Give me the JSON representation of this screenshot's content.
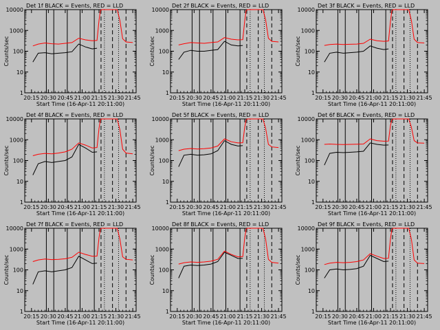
{
  "chart_data": {
    "type": "line",
    "xlabel_text": "Start Time (16-Apr-11 20:11:00)",
    "ylabel": "Counts/sec",
    "ylog": true,
    "ylim": [
      1,
      10000
    ],
    "xlim": [
      20.15,
      21.8
    ],
    "xtick_labels": [
      "20:15",
      "20:30",
      "20:45",
      "21:00",
      "21:15",
      "21:30",
      "21:45"
    ],
    "ytick_labels": [
      "1",
      "10",
      "100",
      "1000",
      "10000"
    ],
    "series_colors": {
      "events": "#000000",
      "lld": "#ff0000"
    },
    "solid_markers": [
      20.47,
      20.58,
      20.78,
      20.97,
      21.18
    ],
    "dashed_markers": [
      21.28,
      21.45,
      21.65
    ],
    "dotted_markers": [
      21.33,
      21.54
    ],
    "time_samples": [
      20.27,
      20.35,
      20.45,
      20.55,
      20.65,
      20.75,
      20.85,
      20.95,
      21.05,
      21.15,
      21.22,
      21.25,
      21.27,
      21.29,
      21.32,
      21.38,
      21.45,
      21.52,
      21.56,
      21.6,
      21.65,
      21.75
    ],
    "detectors": [
      {
        "title": "Det 1f BLACK = Events, RED = LLD",
        "events": [
          30,
          80,
          85,
          75,
          80,
          85,
          95,
          220,
          160,
          130,
          140,
          null,
          null,
          null,
          null,
          null,
          null,
          null,
          null,
          null,
          null,
          null
        ],
        "lld": [
          180,
          220,
          250,
          230,
          220,
          240,
          260,
          420,
          350,
          320,
          330,
          3000,
          9000,
          10000,
          10000,
          10000,
          10000,
          10000,
          3000,
          400,
          280,
          260
        ]
      },
      {
        "title": "Det 2f BLACK = Events, RED = LLD",
        "events": [
          40,
          90,
          110,
          100,
          100,
          110,
          120,
          300,
          200,
          180,
          190,
          null,
          null,
          null,
          null,
          null,
          null,
          null,
          null,
          null,
          null,
          null
        ],
        "lld": [
          200,
          230,
          260,
          250,
          240,
          260,
          280,
          450,
          380,
          350,
          360,
          3000,
          9000,
          10000,
          10000,
          10000,
          10000,
          10000,
          3200,
          420,
          300,
          280
        ]
      },
      {
        "title": "Det 3f BLACK = Events, RED = LLD",
        "events": [
          30,
          80,
          90,
          80,
          85,
          90,
          100,
          180,
          140,
          120,
          130,
          null,
          null,
          null,
          null,
          null,
          null,
          null,
          null,
          null,
          null,
          null
        ],
        "lld": [
          190,
          210,
          220,
          210,
          215,
          220,
          240,
          380,
          320,
          300,
          310,
          2800,
          9000,
          10000,
          10000,
          10000,
          10000,
          10000,
          3000,
          380,
          260,
          250
        ]
      },
      {
        "title": "Det 4f BLACK = Events, RED = LLD",
        "events": [
          20,
          70,
          90,
          80,
          90,
          100,
          150,
          600,
          400,
          250,
          260,
          null,
          null,
          null,
          null,
          null,
          null,
          null,
          null,
          null,
          null,
          null
        ],
        "lld": [
          170,
          200,
          220,
          210,
          230,
          260,
          350,
          700,
          550,
          400,
          420,
          3500,
          9000,
          10000,
          10000,
          10000,
          10000,
          10000,
          3000,
          350,
          230,
          210
        ]
      },
      {
        "title": "Det 5f BLACK = Events, RED = LLD",
        "events": [
          50,
          180,
          200,
          180,
          190,
          210,
          300,
          900,
          600,
          500,
          520,
          null,
          null,
          null,
          null,
          null,
          null,
          null,
          null,
          null,
          null,
          null
        ],
        "lld": [
          300,
          350,
          380,
          360,
          370,
          400,
          500,
          1100,
          800,
          700,
          720,
          4000,
          9000,
          10000,
          10000,
          10000,
          10000,
          10000,
          3500,
          600,
          450,
          420
        ]
      },
      {
        "title": "Det 6f BLACK = Events, RED = LLD",
        "events": [
          60,
          220,
          250,
          240,
          250,
          260,
          280,
          700,
          600,
          550,
          560,
          null,
          null,
          null,
          null,
          null,
          null,
          null,
          null,
          null,
          null,
          null
        ],
        "lld": [
          600,
          620,
          600,
          590,
          600,
          610,
          620,
          1100,
          900,
          850,
          860,
          5000,
          9000,
          10000,
          10000,
          10000,
          10000,
          10000,
          4000,
          900,
          700,
          680
        ]
      },
      {
        "title": "Det 7f BLACK = Events, RED = LLD",
        "events": [
          20,
          80,
          90,
          80,
          90,
          100,
          130,
          450,
          300,
          200,
          210,
          null,
          null,
          null,
          null,
          null,
          null,
          null,
          null,
          null,
          null,
          null
        ],
        "lld": [
          250,
          300,
          330,
          310,
          320,
          340,
          400,
          700,
          550,
          450,
          460,
          3500,
          9000,
          10000,
          10000,
          10000,
          10000,
          10000,
          3000,
          420,
          320,
          300
        ]
      },
      {
        "title": "Det 8f BLACK = Events, RED = LLD",
        "events": [
          40,
          150,
          170,
          160,
          170,
          190,
          250,
          700,
          500,
          350,
          360,
          null,
          null,
          null,
          null,
          null,
          null,
          null,
          null,
          null,
          null,
          null
        ],
        "lld": [
          190,
          220,
          240,
          230,
          240,
          260,
          320,
          800,
          550,
          420,
          430,
          3500,
          9000,
          10000,
          10000,
          10000,
          10000,
          10000,
          3000,
          320,
          230,
          210
        ]
      },
      {
        "title": "Det 9f BLACK = Events, RED = LLD",
        "events": [
          40,
          100,
          110,
          100,
          105,
          115,
          150,
          500,
          350,
          250,
          260,
          null,
          null,
          null,
          null,
          null,
          null,
          null,
          null,
          null,
          null,
          null
        ],
        "lld": [
          180,
          210,
          230,
          220,
          230,
          250,
          300,
          600,
          450,
          350,
          360,
          3200,
          9000,
          10000,
          10000,
          10000,
          10000,
          10000,
          3000,
          300,
          210,
          200
        ]
      }
    ]
  }
}
